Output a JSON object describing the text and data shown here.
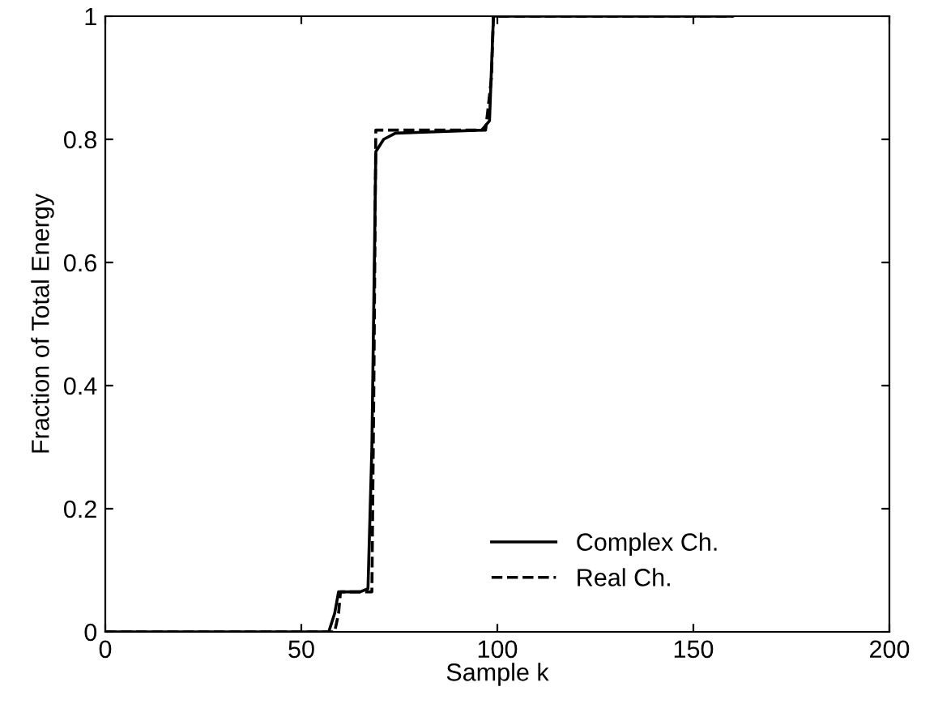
{
  "chart_data": {
    "type": "line",
    "xlabel": "Sample k",
    "ylabel": "Fraction of Total Energy",
    "xlim": [
      0,
      200
    ],
    "ylim": [
      0,
      1
    ],
    "xticks": [
      0,
      50,
      100,
      150,
      200
    ],
    "yticks": [
      0,
      0.2,
      0.4,
      0.6,
      0.8,
      1
    ],
    "grid": false,
    "legend": "bottom right",
    "marker": "none",
    "series": [
      {
        "name": "Complex Ch.",
        "color": "#000000",
        "line_style": "solid",
        "x": [
          0,
          57,
          58.5,
          59.5,
          65,
          67,
          68,
          69,
          71,
          74,
          96,
          98,
          99,
          160
        ],
        "values": [
          0,
          0,
          0.03,
          0.065,
          0.065,
          0.07,
          0.3,
          0.78,
          0.8,
          0.81,
          0.815,
          0.83,
          1.0,
          1.0
        ]
      },
      {
        "name": "Real Ch.",
        "color": "#000000",
        "line_style": "dashed",
        "x": [
          0,
          58.5,
          59.5,
          60,
          68,
          68.5,
          69,
          97,
          98.5,
          99,
          160
        ],
        "values": [
          0,
          0,
          0.03,
          0.065,
          0.065,
          0.4,
          0.815,
          0.815,
          0.9,
          1.0,
          1.0
        ]
      }
    ]
  }
}
